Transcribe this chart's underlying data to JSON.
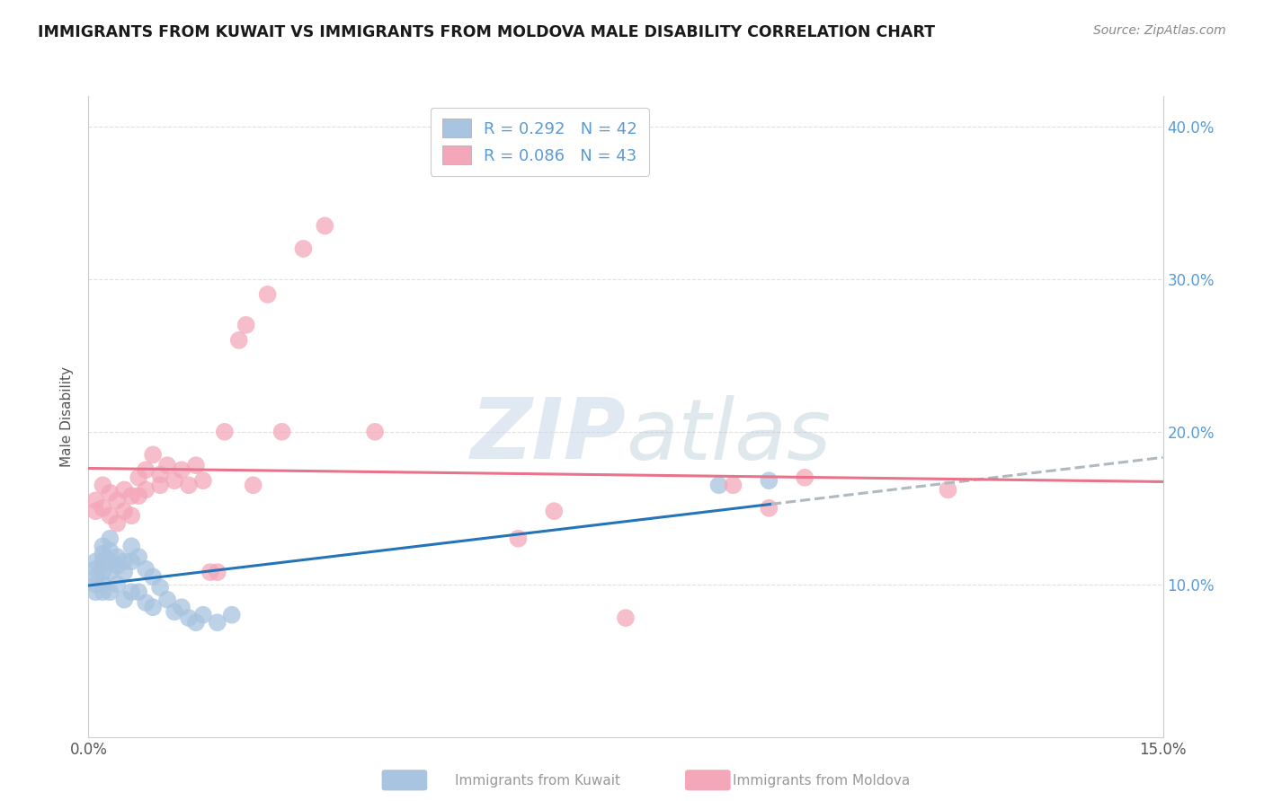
{
  "title": "IMMIGRANTS FROM KUWAIT VS IMMIGRANTS FROM MOLDOVA MALE DISABILITY CORRELATION CHART",
  "source": "Source: ZipAtlas.com",
  "ylabel": "Male Disability",
  "xlim": [
    0.0,
    0.15
  ],
  "ylim": [
    0.0,
    0.42
  ],
  "kuwait_color": "#a8c4e0",
  "moldova_color": "#f4a7b9",
  "kuwait_line_color": "#2674b8",
  "moldova_line_color": "#e8738a",
  "kuwait_dash_color": "#b0b8c0",
  "kuwait_R": 0.292,
  "kuwait_N": 42,
  "moldova_R": 0.086,
  "moldova_N": 43,
  "kuwait_x": [
    0.001,
    0.001,
    0.001,
    0.001,
    0.001,
    0.002,
    0.002,
    0.002,
    0.002,
    0.002,
    0.002,
    0.003,
    0.003,
    0.003,
    0.003,
    0.003,
    0.004,
    0.004,
    0.004,
    0.005,
    0.005,
    0.005,
    0.006,
    0.006,
    0.006,
    0.007,
    0.007,
    0.008,
    0.008,
    0.009,
    0.009,
    0.01,
    0.011,
    0.012,
    0.013,
    0.014,
    0.015,
    0.016,
    0.018,
    0.02,
    0.088,
    0.095
  ],
  "kuwait_y": [
    0.115,
    0.11,
    0.105,
    0.1,
    0.095,
    0.125,
    0.12,
    0.115,
    0.108,
    0.1,
    0.095,
    0.13,
    0.122,
    0.115,
    0.108,
    0.095,
    0.118,
    0.112,
    0.1,
    0.115,
    0.108,
    0.09,
    0.125,
    0.115,
    0.095,
    0.118,
    0.095,
    0.11,
    0.088,
    0.105,
    0.085,
    0.098,
    0.09,
    0.082,
    0.085,
    0.078,
    0.075,
    0.08,
    0.075,
    0.08,
    0.165,
    0.168
  ],
  "moldova_x": [
    0.001,
    0.001,
    0.002,
    0.002,
    0.003,
    0.003,
    0.004,
    0.004,
    0.005,
    0.005,
    0.006,
    0.006,
    0.007,
    0.007,
    0.008,
    0.008,
    0.009,
    0.01,
    0.01,
    0.011,
    0.012,
    0.013,
    0.014,
    0.015,
    0.016,
    0.017,
    0.018,
    0.019,
    0.021,
    0.022,
    0.023,
    0.025,
    0.027,
    0.03,
    0.033,
    0.04,
    0.06,
    0.065,
    0.075,
    0.09,
    0.095,
    0.1,
    0.12
  ],
  "moldova_y": [
    0.155,
    0.148,
    0.165,
    0.15,
    0.16,
    0.145,
    0.155,
    0.14,
    0.162,
    0.148,
    0.158,
    0.145,
    0.17,
    0.158,
    0.175,
    0.162,
    0.185,
    0.172,
    0.165,
    0.178,
    0.168,
    0.175,
    0.165,
    0.178,
    0.168,
    0.108,
    0.108,
    0.2,
    0.26,
    0.27,
    0.165,
    0.29,
    0.2,
    0.32,
    0.335,
    0.2,
    0.13,
    0.148,
    0.078,
    0.165,
    0.15,
    0.17,
    0.162
  ],
  "watermark_zip": "ZIP",
  "watermark_atlas": "atlas",
  "background_color": "#ffffff",
  "grid_color": "#e0e0e0",
  "legend_r_color": "#5b9bd5",
  "legend_n_color": "#3a7abf",
  "bottom_legend_color": "#999999"
}
